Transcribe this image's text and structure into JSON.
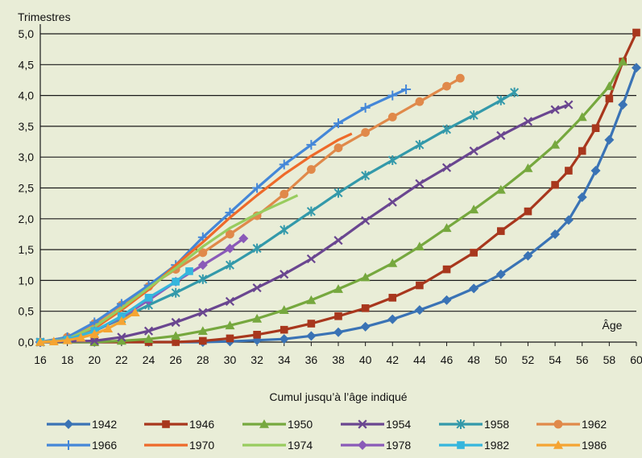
{
  "chart_data": {
    "type": "line",
    "ylabel": "Trimestres",
    "xlabel": "Cumul jusqu’à l’âge indiqué",
    "x_annotation": "Âge",
    "xlim": [
      16,
      60
    ],
    "ylim": [
      0,
      5
    ],
    "x_ticks": [
      "16",
      "18",
      "20",
      "22",
      "24",
      "26",
      "28",
      "30",
      "32",
      "34",
      "36",
      "38",
      "40",
      "42",
      "44",
      "46",
      "48",
      "50",
      "52",
      "54",
      "56",
      "58",
      "60"
    ],
    "y_ticks": [
      "0,0",
      "0,5",
      "1,0",
      "1,5",
      "2,0",
      "2,5",
      "3,0",
      "3,5",
      "4,0",
      "4,5",
      "5,0"
    ],
    "grid": true,
    "legend_position": "bottom",
    "series": [
      {
        "name": "1942",
        "color": "#3a73b5",
        "marker": "diamond",
        "x": [
          16,
          20,
          24,
          28,
          30,
          32,
          34,
          36,
          38,
          40,
          42,
          44,
          46,
          48,
          50,
          52,
          54,
          55,
          56,
          57,
          58,
          59,
          60
        ],
        "y": [
          0,
          0,
          0,
          0,
          0.01,
          0.03,
          0.05,
          0.1,
          0.16,
          0.25,
          0.37,
          0.52,
          0.68,
          0.87,
          1.1,
          1.4,
          1.75,
          1.98,
          2.35,
          2.78,
          3.28,
          3.85,
          4.45
        ]
      },
      {
        "name": "1946",
        "color": "#a8371d",
        "marker": "square",
        "x": [
          16,
          20,
          24,
          26,
          28,
          30,
          32,
          34,
          36,
          38,
          40,
          42,
          44,
          46,
          48,
          50,
          52,
          54,
          55,
          56,
          57,
          58,
          59,
          60
        ],
        "y": [
          0,
          0,
          0,
          0,
          0.02,
          0.06,
          0.12,
          0.2,
          0.3,
          0.42,
          0.55,
          0.72,
          0.92,
          1.18,
          1.45,
          1.8,
          2.12,
          2.55,
          2.78,
          3.1,
          3.47,
          3.95,
          4.55,
          5.02
        ]
      },
      {
        "name": "1950",
        "color": "#76a83e",
        "marker": "triangle",
        "x": [
          16,
          20,
          22,
          24,
          26,
          28,
          30,
          32,
          34,
          36,
          38,
          40,
          42,
          44,
          46,
          48,
          50,
          52,
          54,
          56,
          58,
          59
        ],
        "y": [
          0,
          0,
          0.02,
          0.05,
          0.1,
          0.18,
          0.27,
          0.38,
          0.52,
          0.68,
          0.86,
          1.05,
          1.28,
          1.55,
          1.85,
          2.15,
          2.47,
          2.82,
          3.2,
          3.65,
          4.15,
          4.55
        ]
      },
      {
        "name": "1954",
        "color": "#6a4690",
        "marker": "x",
        "x": [
          16,
          20,
          22,
          24,
          26,
          28,
          30,
          32,
          34,
          36,
          38,
          40,
          42,
          44,
          46,
          48,
          50,
          52,
          54,
          55
        ],
        "y": [
          0,
          0.02,
          0.08,
          0.18,
          0.32,
          0.48,
          0.66,
          0.88,
          1.1,
          1.35,
          1.65,
          1.97,
          2.27,
          2.57,
          2.83,
          3.1,
          3.35,
          3.58,
          3.77,
          3.85
        ]
      },
      {
        "name": "1958",
        "color": "#3399aa",
        "marker": "star",
        "x": [
          16,
          18,
          20,
          22,
          24,
          26,
          28,
          30,
          32,
          34,
          36,
          38,
          40,
          42,
          44,
          46,
          48,
          50,
          51
        ],
        "y": [
          0,
          0.05,
          0.18,
          0.38,
          0.6,
          0.8,
          1.02,
          1.25,
          1.52,
          1.82,
          2.12,
          2.42,
          2.7,
          2.95,
          3.2,
          3.45,
          3.68,
          3.92,
          4.05
        ]
      },
      {
        "name": "1962",
        "color": "#e0894a",
        "marker": "circle",
        "x": [
          16,
          18,
          20,
          22,
          24,
          26,
          28,
          30,
          32,
          34,
          36,
          38,
          40,
          42,
          44,
          46,
          47
        ],
        "y": [
          0,
          0.08,
          0.3,
          0.6,
          0.9,
          1.18,
          1.45,
          1.75,
          2.05,
          2.4,
          2.8,
          3.15,
          3.4,
          3.65,
          3.9,
          4.15,
          4.28
        ]
      },
      {
        "name": "1966",
        "color": "#4487d8",
        "marker": "plus",
        "x": [
          16,
          18,
          20,
          22,
          24,
          26,
          28,
          30,
          32,
          34,
          36,
          38,
          40,
          42,
          43
        ],
        "y": [
          0,
          0.08,
          0.32,
          0.62,
          0.92,
          1.25,
          1.7,
          2.1,
          2.5,
          2.88,
          3.2,
          3.55,
          3.8,
          4.0,
          4.1
        ]
      },
      {
        "name": "1970",
        "color": "#ee6a2a",
        "marker": "none",
        "x": [
          16,
          18,
          20,
          22,
          24,
          26,
          28,
          30,
          32,
          34,
          36,
          38,
          39
        ],
        "y": [
          0,
          0.05,
          0.22,
          0.52,
          0.85,
          1.25,
          1.62,
          2.02,
          2.38,
          2.72,
          3.02,
          3.28,
          3.38
        ]
      },
      {
        "name": "1974",
        "color": "#98cc5e",
        "marker": "none",
        "x": [
          16,
          18,
          20,
          22,
          24,
          26,
          28,
          30,
          32,
          34,
          35
        ],
        "y": [
          0,
          0.05,
          0.25,
          0.55,
          0.88,
          1.2,
          1.55,
          1.85,
          2.08,
          2.28,
          2.38
        ]
      },
      {
        "name": "1978",
        "color": "#8a5ab8",
        "marker": "diamond",
        "x": [
          16,
          18,
          20,
          22,
          24,
          26,
          28,
          30,
          31
        ],
        "y": [
          0,
          0.04,
          0.18,
          0.4,
          0.68,
          0.98,
          1.25,
          1.52,
          1.68
        ]
      },
      {
        "name": "1982",
        "color": "#35b6dd",
        "marker": "square",
        "x": [
          16,
          18,
          20,
          22,
          24,
          26,
          27
        ],
        "y": [
          0,
          0.04,
          0.18,
          0.42,
          0.72,
          0.98,
          1.15
        ]
      },
      {
        "name": "1986",
        "color": "#f5a432",
        "marker": "triangle",
        "x": [
          16,
          17,
          18,
          19,
          20,
          21,
          22,
          23
        ],
        "y": [
          0,
          0.01,
          0.03,
          0.07,
          0.13,
          0.22,
          0.34,
          0.48
        ]
      }
    ]
  }
}
